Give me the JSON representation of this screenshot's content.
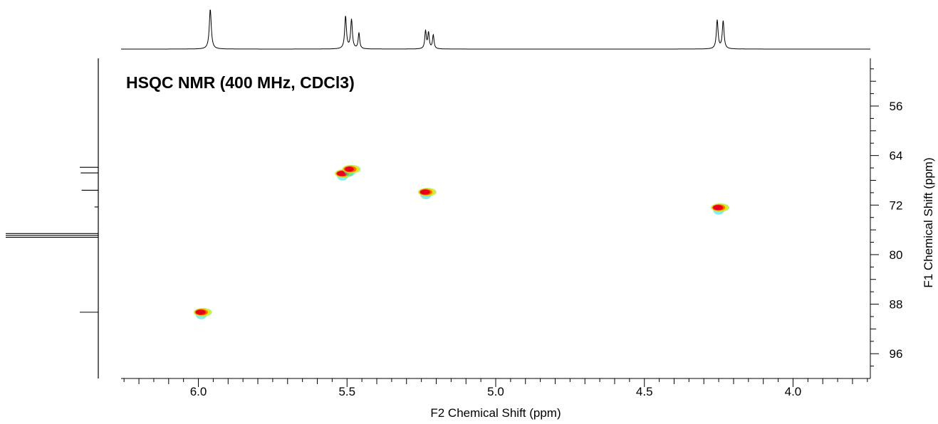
{
  "chart_data": {
    "type": "heatmap",
    "title": "HSQC NMR (400 MHz, CDCl3)",
    "xlabel": "F2 Chemical Shift (ppm)",
    "ylabel": "F1 Chemical Shift (ppm)",
    "xlim": [
      6.26,
      3.74
    ],
    "ylim": [
      48.3,
      100.0
    ],
    "x_ticks": [
      "6.0",
      "5.5",
      "5.0",
      "4.5",
      "4.0"
    ],
    "y_ticks": [
      "56",
      "64",
      "72",
      "80",
      "88",
      "96"
    ],
    "x_minor_step": 0.05,
    "y_minor_step": 2,
    "x_reversed": true,
    "y_reversed": true,
    "grid": false,
    "series": [
      {
        "values": [
          {
            "x": 5.99,
            "y": 89.3,
            "intensity": 1.0
          },
          {
            "x": 5.515,
            "y": 66.9,
            "intensity": 1.0
          },
          {
            "x": 5.49,
            "y": 66.2,
            "intensity": 0.9
          },
          {
            "x": 5.235,
            "y": 69.9,
            "intensity": 1.0
          },
          {
            "x": 4.25,
            "y": 72.4,
            "intensity": 1.0
          }
        ]
      }
    ],
    "projection_f2": [
      {
        "x": 5.96,
        "h": 1.0,
        "w": 0.004
      },
      {
        "x": 5.505,
        "h": 0.82,
        "w": 0.0035
      },
      {
        "x": 5.485,
        "h": 0.73,
        "w": 0.0035
      },
      {
        "x": 5.46,
        "h": 0.4,
        "w": 0.003
      },
      {
        "x": 5.236,
        "h": 0.45,
        "w": 0.003
      },
      {
        "x": 5.226,
        "h": 0.4,
        "w": 0.003
      },
      {
        "x": 5.21,
        "h": 0.35,
        "w": 0.003
      },
      {
        "x": 4.255,
        "h": 0.72,
        "w": 0.0035
      },
      {
        "x": 4.235,
        "h": 0.7,
        "w": 0.0035
      }
    ],
    "projection_f1": [
      {
        "y": 65.9,
        "h": 0.2
      },
      {
        "y": 66.8,
        "h": 0.19
      },
      {
        "y": 69.6,
        "h": 0.18
      },
      {
        "y": 72.3,
        "h": 0.04
      },
      {
        "y": 76.6,
        "h": 1.0
      },
      {
        "y": 76.9,
        "h": 1.0
      },
      {
        "y": 77.2,
        "h": 1.0
      },
      {
        "y": 89.3,
        "h": 0.2
      }
    ],
    "colors": {
      "axis": "#000000",
      "peak_core": "#e8001a",
      "peak_mid": "#ff6a00",
      "peak_edge": "#f0e400",
      "peak_halo": "#a8e84a",
      "peak_cyan": "#23e0d8"
    }
  }
}
